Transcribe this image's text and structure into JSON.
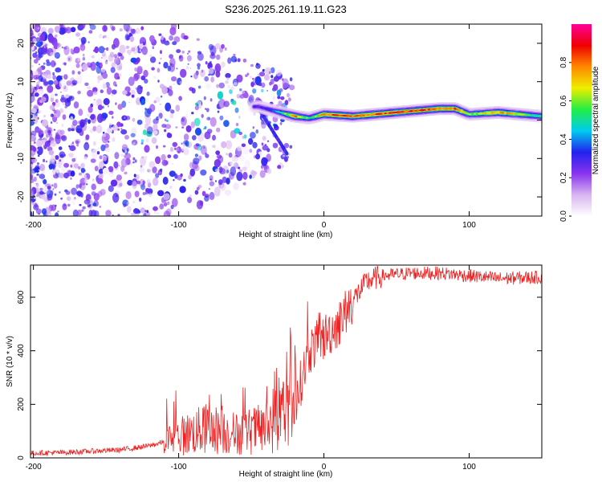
{
  "title": "S236.2025.261.19.11.G23",
  "colors": {
    "snr_line": "#ee2222",
    "axis": "#000000",
    "background": "#ffffff"
  },
  "chart_data": [
    {
      "type": "heatmap",
      "name": "spectrogram",
      "title": "S236.2025.261.19.11.G23",
      "xlabel": "Height of straight line (km)",
      "ylabel": "Frequency (Hz)",
      "xlim": [
        -202,
        150
      ],
      "ylim": [
        -25,
        25
      ],
      "xticks": [
        -200,
        -100,
        0,
        100
      ],
      "yticks": [
        -20,
        -10,
        0,
        10,
        20
      ],
      "colorbar": {
        "label": "Normalized spectral amplitude",
        "range": [
          0.0,
          1.0
        ],
        "ticks": [
          0.0,
          0.2,
          0.4,
          0.6,
          0.8
        ],
        "colormap": [
          "#ffffff",
          "#d8b4f0",
          "#8833ee",
          "#2222ee",
          "#00ccee",
          "#22ee44",
          "#eeee00",
          "#ff8800",
          "#ee0000",
          "#ff0099"
        ]
      },
      "ridge": [
        {
          "x": -45,
          "y": 3.5,
          "amp": 0.3
        },
        {
          "x": -35,
          "y": 2.5,
          "amp": 0.35
        },
        {
          "x": -20,
          "y": 1.0,
          "amp": 0.8
        },
        {
          "x": -10,
          "y": 0.5,
          "amp": 0.5
        },
        {
          "x": 0,
          "y": 1.5,
          "amp": 0.8
        },
        {
          "x": 20,
          "y": 1.0,
          "amp": 0.85
        },
        {
          "x": 50,
          "y": 2.0,
          "amp": 0.9
        },
        {
          "x": 80,
          "y": 3.0,
          "amp": 0.85
        },
        {
          "x": 90,
          "y": 3.0,
          "amp": 0.85
        },
        {
          "x": 100,
          "y": 1.5,
          "amp": 0.6
        },
        {
          "x": 120,
          "y": 2.0,
          "amp": 0.8
        },
        {
          "x": 150,
          "y": 1.0,
          "amp": 0.5
        }
      ]
    },
    {
      "type": "line",
      "name": "snr",
      "xlabel": "Height of straight line (km)",
      "ylabel": "SNR (10 * v/v)",
      "xlim": [
        -202,
        150
      ],
      "ylim": [
        0,
        720
      ],
      "xticks": [
        -200,
        -100,
        0,
        100
      ],
      "yticks": [
        0,
        200,
        400,
        600
      ],
      "series": [
        {
          "name": "SNR",
          "x": [
            -202,
            -180,
            -160,
            -140,
            -120,
            -110,
            -100,
            -80,
            -60,
            -40,
            -30,
            -20,
            -15,
            -10,
            0,
            10,
            20,
            30,
            40,
            60,
            80,
            100,
            120,
            150
          ],
          "values": [
            18,
            20,
            25,
            30,
            45,
            60,
            80,
            110,
            90,
            110,
            180,
            200,
            300,
            400,
            450,
            500,
            590,
            660,
            680,
            690,
            690,
            680,
            670,
            675
          ]
        }
      ]
    }
  ]
}
